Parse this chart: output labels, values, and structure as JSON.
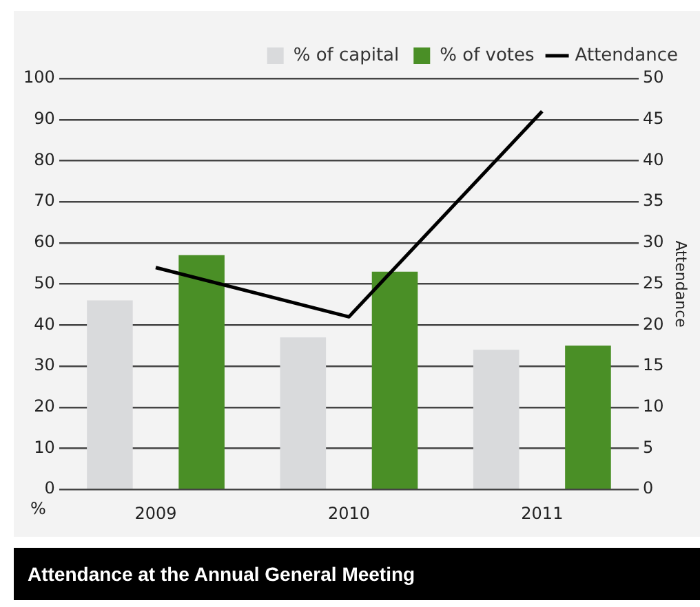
{
  "chart_data": {
    "type": "bar",
    "title": "Attendance at the Annual General Meeting",
    "categories": [
      "2009",
      "2010",
      "2011"
    ],
    "series": [
      {
        "name": "% of capital",
        "color": "#d9dadc",
        "values": [
          46,
          37,
          34
        ]
      },
      {
        "name": "% of votes",
        "color": "#4a8f26",
        "values": [
          57,
          53,
          35
        ]
      },
      {
        "name": "Attendance",
        "type": "line",
        "axis": "y2",
        "color": "#000000",
        "values": [
          27,
          21,
          46
        ]
      }
    ],
    "ylabel": "%",
    "y2label": "Attendance",
    "ylim": [
      0,
      100
    ],
    "yticks": [
      0,
      10,
      20,
      30,
      40,
      50,
      60,
      70,
      80,
      90,
      100
    ],
    "y2lim": [
      0,
      50
    ],
    "y2ticks": [
      0,
      5,
      10,
      15,
      20,
      25,
      30,
      35,
      40,
      45,
      50
    ],
    "grid": "y",
    "legend": "top right",
    "marker": "none"
  }
}
